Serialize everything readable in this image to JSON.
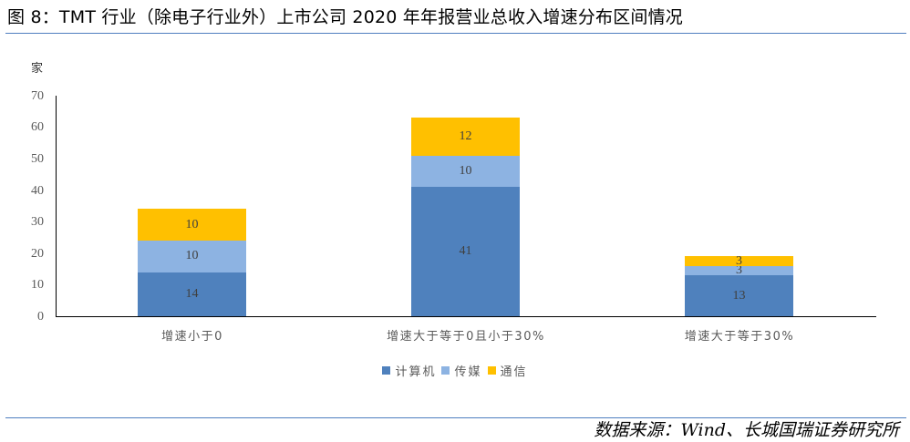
{
  "header": {
    "title": "图 8：TMT 行业（除电子行业外）上市公司 2020 年年报营业总收入增速分布区间情况"
  },
  "footer": {
    "source": "数据来源：Wind、长城国瑞证券研究所"
  },
  "colors": {
    "computer": "#4f81bd",
    "media": "#8db3e2",
    "telecom": "#ffc000",
    "rule": "#4f7fbf"
  },
  "chart_data": {
    "type": "bar",
    "stacked": true,
    "title": "",
    "xlabel": "",
    "ylabel": "家",
    "ylim": [
      0,
      70
    ],
    "yticks": [
      "0",
      "10",
      "20",
      "30",
      "40",
      "50",
      "60",
      "70"
    ],
    "grid": false,
    "legend_position": "bottom",
    "categories": [
      "增速小于0",
      "增速大于等于0且小于30%",
      "增速大于等于30%"
    ],
    "series": [
      {
        "name": "计算机",
        "color": "#4f81bd",
        "values": [
          14,
          41,
          13
        ]
      },
      {
        "name": "传媒",
        "color": "#8db3e2",
        "values": [
          10,
          10,
          3
        ]
      },
      {
        "name": "通信",
        "color": "#ffc000",
        "values": [
          10,
          12,
          3
        ]
      }
    ]
  }
}
